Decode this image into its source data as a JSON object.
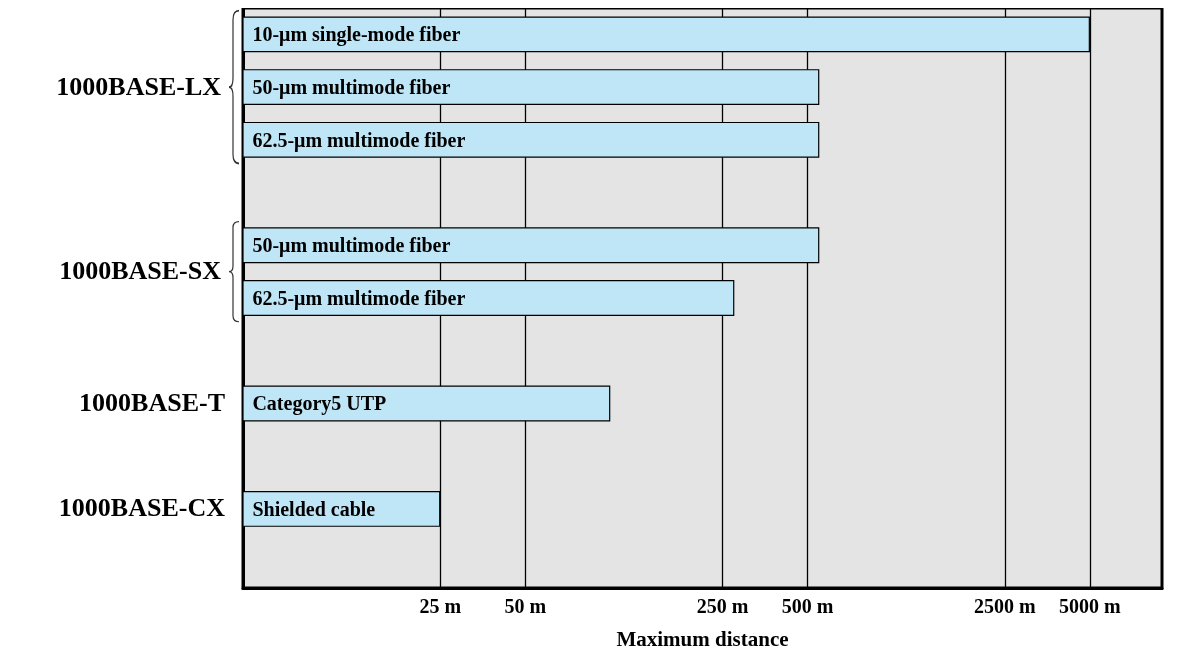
{
  "chart_data": {
    "type": "bar",
    "orientation": "horizontal",
    "log": "x",
    "xlabel": "Maximum distance",
    "categories": [
      "10-μm single-mode fiber",
      "50-μm multimode fiber",
      "62.5-μm multimode fiber",
      null,
      "50-μm multimode fiber",
      "62.5-μm multimode fiber",
      null,
      "Category5 UTP",
      null,
      "Shielded cable",
      null
    ],
    "values": [
      5000,
      550,
      550,
      null,
      550,
      275,
      null,
      100,
      null,
      25,
      null
    ],
    "color": "#bfe6f7",
    "xlim": [
      5,
      9000
    ],
    "xticks": [
      {
        "value": 25,
        "label": "25 m"
      },
      {
        "value": 50,
        "label": "50 m"
      },
      {
        "value": 250,
        "label": "250 m"
      },
      {
        "value": 500,
        "label": "500 m"
      },
      {
        "value": 2500,
        "label": "2500 m"
      },
      {
        "value": 5000,
        "label": "5000 m"
      }
    ],
    "grid": "x",
    "annotations": [
      "1000BASE-LX",
      "1000BASE-SX",
      "1000BASE-T",
      "1000BASE-CX"
    ]
  }
}
